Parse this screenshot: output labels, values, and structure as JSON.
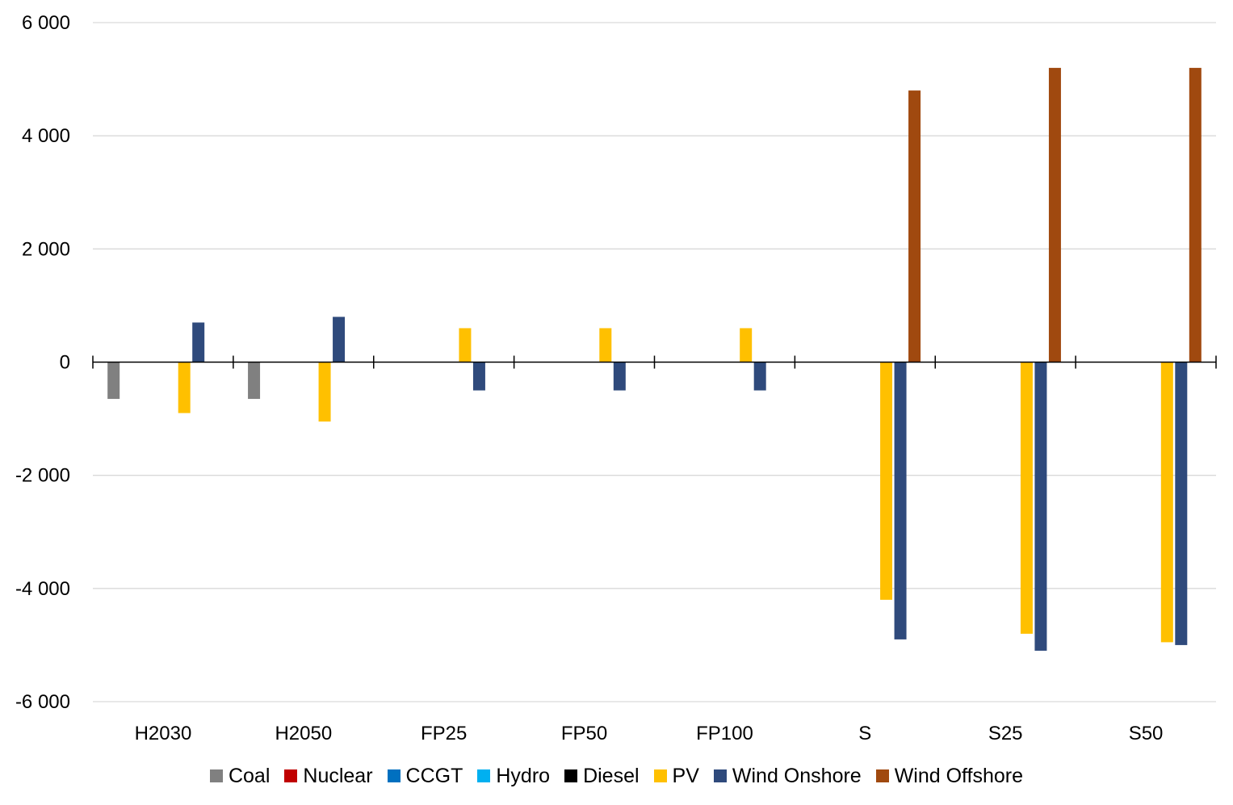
{
  "chart_data": {
    "type": "bar",
    "title": "",
    "xlabel": "",
    "ylabel": "",
    "ylim": [
      -6000,
      6000
    ],
    "yticks": [
      6000,
      4000,
      2000,
      0,
      -2000,
      -4000,
      -6000
    ],
    "ytick_labels": [
      "6 000",
      "4 000",
      "2 000",
      "0",
      "-2 000",
      "-4 000",
      "-6 000"
    ],
    "grid": true,
    "legend_position": "bottom",
    "categories": [
      "H2030",
      "H2050",
      "FP25",
      "FP50",
      "FP100",
      "S",
      "S25",
      "S50"
    ],
    "series": [
      {
        "name": "Coal",
        "color": "#808080",
        "values": [
          -650,
          -650,
          0,
          0,
          0,
          0,
          0,
          0
        ]
      },
      {
        "name": "Nuclear",
        "color": "#C00000",
        "values": [
          0,
          0,
          0,
          0,
          0,
          0,
          0,
          0
        ]
      },
      {
        "name": "CCGT",
        "color": "#0070C0",
        "values": [
          0,
          0,
          0,
          0,
          0,
          0,
          0,
          0
        ]
      },
      {
        "name": "Hydro",
        "color": "#00B0F0",
        "values": [
          0,
          0,
          0,
          0,
          0,
          0,
          0,
          0
        ]
      },
      {
        "name": "Diesel",
        "color": "#000000",
        "values": [
          0,
          0,
          0,
          0,
          0,
          0,
          0,
          0
        ]
      },
      {
        "name": "PV",
        "color": "#FFC000",
        "values": [
          -900,
          -1050,
          600,
          600,
          600,
          -4200,
          -4800,
          -4950
        ]
      },
      {
        "name": "Wind Onshore",
        "color": "#2F4A7C",
        "values": [
          700,
          800,
          -500,
          -500,
          -500,
          -4900,
          -5100,
          -5000
        ]
      },
      {
        "name": "Wind Offshore",
        "color": "#A0490F",
        "values": [
          0,
          0,
          0,
          0,
          0,
          4800,
          5200,
          5200
        ]
      }
    ]
  }
}
